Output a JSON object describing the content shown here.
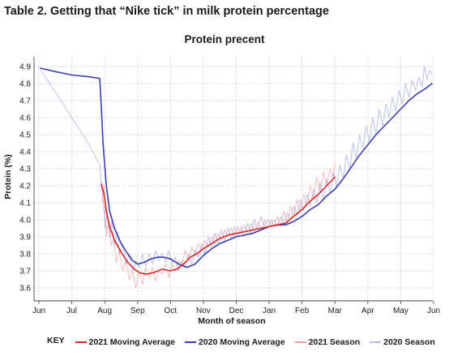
{
  "page": {
    "title": "Table 2. Getting that “Nike tick” in milk protein percentage"
  },
  "chart_data": {
    "type": "line",
    "title": "Protein precent",
    "xlabel": "Month of season",
    "ylabel": "Protein (%)",
    "x_ticks": [
      "Jun",
      "Jul",
      "Aug",
      "Sep",
      "Oct",
      "Nov",
      "Dec",
      "Jan",
      "Feb",
      "Mar",
      "Apr",
      "May",
      "Jun"
    ],
    "y_ticks": [
      "3.6",
      "3.7",
      "3.8",
      "3.9",
      "4.0",
      "4.1",
      "4.2",
      "4.3",
      "4.4",
      "4.5",
      "4.6",
      "4.7",
      "4.8",
      "4.9"
    ],
    "ylim": [
      3.55,
      4.95
    ],
    "grid": "dashed",
    "x_unit": "months since Jun 1 of season start",
    "legend": {
      "key_label": "KEY",
      "position": "bottom"
    },
    "series": [
      {
        "name": "2021 Moving Average",
        "color": "#d62a2a",
        "width": 1.6,
        "opacity": 1,
        "points": [
          [
            1.9,
            4.21
          ],
          [
            1.98,
            4.15
          ],
          [
            2.05,
            4.05
          ],
          [
            2.15,
            3.96
          ],
          [
            2.3,
            3.88
          ],
          [
            2.5,
            3.81
          ],
          [
            2.7,
            3.75
          ],
          [
            2.9,
            3.71
          ],
          [
            3.05,
            3.69
          ],
          [
            3.25,
            3.68
          ],
          [
            3.5,
            3.69
          ],
          [
            3.75,
            3.71
          ],
          [
            4.0,
            3.7
          ],
          [
            4.2,
            3.71
          ],
          [
            4.4,
            3.74
          ],
          [
            4.6,
            3.78
          ],
          [
            4.8,
            3.8
          ],
          [
            5.0,
            3.83
          ],
          [
            5.25,
            3.86
          ],
          [
            5.5,
            3.89
          ],
          [
            5.75,
            3.91
          ],
          [
            6.0,
            3.92
          ],
          [
            6.25,
            3.93
          ],
          [
            6.5,
            3.94
          ],
          [
            6.75,
            3.95
          ],
          [
            7.0,
            3.96
          ],
          [
            7.25,
            3.97
          ],
          [
            7.5,
            3.98
          ],
          [
            7.75,
            4.02
          ],
          [
            8.0,
            4.06
          ],
          [
            8.25,
            4.11
          ],
          [
            8.5,
            4.15
          ],
          [
            8.75,
            4.2
          ],
          [
            9.0,
            4.25
          ]
        ]
      },
      {
        "name": "2020 Moving Average",
        "color": "#3a3fb0",
        "width": 1.6,
        "opacity": 1,
        "points": [
          [
            0.05,
            4.89
          ],
          [
            0.5,
            4.87
          ],
          [
            1.0,
            4.85
          ],
          [
            1.5,
            4.84
          ],
          [
            1.85,
            4.83
          ],
          [
            1.9,
            4.65
          ],
          [
            1.95,
            4.45
          ],
          [
            2.05,
            4.2
          ],
          [
            2.15,
            4.05
          ],
          [
            2.3,
            3.95
          ],
          [
            2.5,
            3.86
          ],
          [
            2.7,
            3.8
          ],
          [
            2.85,
            3.76
          ],
          [
            3.0,
            3.74
          ],
          [
            3.2,
            3.75
          ],
          [
            3.4,
            3.77
          ],
          [
            3.6,
            3.78
          ],
          [
            3.8,
            3.78
          ],
          [
            4.0,
            3.77
          ],
          [
            4.25,
            3.74
          ],
          [
            4.5,
            3.72
          ],
          [
            4.75,
            3.74
          ],
          [
            5.0,
            3.79
          ],
          [
            5.25,
            3.83
          ],
          [
            5.5,
            3.86
          ],
          [
            5.75,
            3.88
          ],
          [
            6.0,
            3.9
          ],
          [
            6.25,
            3.91
          ],
          [
            6.5,
            3.92
          ],
          [
            6.75,
            3.94
          ],
          [
            7.0,
            3.96
          ],
          [
            7.25,
            3.97
          ],
          [
            7.5,
            3.97
          ],
          [
            7.75,
            3.99
          ],
          [
            8.0,
            4.02
          ],
          [
            8.25,
            4.06
          ],
          [
            8.5,
            4.09
          ],
          [
            8.75,
            4.14
          ],
          [
            9.0,
            4.18
          ],
          [
            9.25,
            4.24
          ],
          [
            9.5,
            4.31
          ],
          [
            9.75,
            4.38
          ],
          [
            10.0,
            4.44
          ],
          [
            10.25,
            4.5
          ],
          [
            10.5,
            4.55
          ],
          [
            10.75,
            4.6
          ],
          [
            11.0,
            4.65
          ],
          [
            11.25,
            4.7
          ],
          [
            11.5,
            4.74
          ],
          [
            11.75,
            4.77
          ],
          [
            11.95,
            4.8
          ]
        ]
      },
      {
        "name": "2021 Season",
        "color": "#e86b6b",
        "width": 1,
        "opacity": 0.45,
        "points": [
          [
            1.92,
            4.1
          ],
          [
            1.98,
            4.2
          ],
          [
            2.05,
            3.9
          ],
          [
            2.12,
            4.0
          ],
          [
            2.2,
            3.85
          ],
          [
            2.28,
            3.9
          ],
          [
            2.35,
            3.75
          ],
          [
            2.45,
            3.82
          ],
          [
            2.55,
            3.7
          ],
          [
            2.65,
            3.76
          ],
          [
            2.75,
            3.65
          ],
          [
            2.85,
            3.7
          ],
          [
            2.95,
            3.6
          ],
          [
            3.05,
            3.7
          ],
          [
            3.15,
            3.62
          ],
          [
            3.25,
            3.72
          ],
          [
            3.35,
            3.66
          ],
          [
            3.45,
            3.72
          ],
          [
            3.55,
            3.64
          ],
          [
            3.65,
            3.7
          ],
          [
            3.75,
            3.68
          ],
          [
            3.85,
            3.74
          ],
          [
            3.95,
            3.66
          ],
          [
            4.05,
            3.74
          ],
          [
            4.15,
            3.7
          ],
          [
            4.25,
            3.76
          ],
          [
            4.35,
            3.74
          ],
          [
            4.45,
            3.82
          ],
          [
            4.55,
            3.76
          ],
          [
            4.65,
            3.84
          ],
          [
            4.75,
            3.8
          ],
          [
            4.85,
            3.86
          ],
          [
            4.95,
            3.82
          ],
          [
            5.05,
            3.88
          ],
          [
            5.15,
            3.84
          ],
          [
            5.25,
            3.9
          ],
          [
            5.35,
            3.86
          ],
          [
            5.45,
            3.92
          ],
          [
            5.55,
            3.88
          ],
          [
            5.65,
            3.94
          ],
          [
            5.75,
            3.9
          ],
          [
            5.85,
            3.95
          ],
          [
            5.95,
            3.9
          ],
          [
            6.05,
            3.96
          ],
          [
            6.15,
            3.92
          ],
          [
            6.25,
            3.97
          ],
          [
            6.35,
            3.91
          ],
          [
            6.45,
            3.98
          ],
          [
            6.55,
            3.93
          ],
          [
            6.65,
            3.99
          ],
          [
            6.75,
            3.94
          ],
          [
            6.85,
            4.0
          ],
          [
            6.95,
            3.95
          ],
          [
            7.05,
            4.0
          ],
          [
            7.15,
            3.96
          ],
          [
            7.25,
            4.02
          ],
          [
            7.35,
            3.96
          ],
          [
            7.45,
            4.05
          ],
          [
            7.55,
            3.98
          ],
          [
            7.65,
            4.08
          ],
          [
            7.75,
            4.02
          ],
          [
            7.85,
            4.12
          ],
          [
            7.95,
            4.05
          ],
          [
            8.05,
            4.15
          ],
          [
            8.15,
            4.08
          ],
          [
            8.25,
            4.2
          ],
          [
            8.35,
            4.12
          ],
          [
            8.45,
            4.25
          ],
          [
            8.55,
            4.16
          ],
          [
            8.65,
            4.28
          ],
          [
            8.75,
            4.2
          ],
          [
            8.85,
            4.3
          ],
          [
            8.95,
            4.25
          ],
          [
            9.0,
            4.33
          ]
        ]
      },
      {
        "name": "2020 Season",
        "color": "#8e8ee0",
        "width": 1,
        "opacity": 0.55,
        "points": [
          [
            0.05,
            4.88
          ],
          [
            0.5,
            4.75
          ],
          [
            1.0,
            4.6
          ],
          [
            1.5,
            4.45
          ],
          [
            1.85,
            4.32
          ],
          [
            1.9,
            4.2
          ],
          [
            1.95,
            4.12
          ],
          [
            2.02,
            3.95
          ],
          [
            2.08,
            4.05
          ],
          [
            2.15,
            3.9
          ],
          [
            2.22,
            4.0
          ],
          [
            2.3,
            3.85
          ],
          [
            2.38,
            3.93
          ],
          [
            2.45,
            3.8
          ],
          [
            2.55,
            3.86
          ],
          [
            2.65,
            3.74
          ],
          [
            2.75,
            3.8
          ],
          [
            2.85,
            3.7
          ],
          [
            2.95,
            3.76
          ],
          [
            3.05,
            3.72
          ],
          [
            3.15,
            3.8
          ],
          [
            3.25,
            3.73
          ],
          [
            3.35,
            3.8
          ],
          [
            3.45,
            3.74
          ],
          [
            3.55,
            3.82
          ],
          [
            3.65,
            3.76
          ],
          [
            3.75,
            3.8
          ],
          [
            3.85,
            3.75
          ],
          [
            3.95,
            3.82
          ],
          [
            4.05,
            3.74
          ],
          [
            4.15,
            3.78
          ],
          [
            4.25,
            3.7
          ],
          [
            4.35,
            3.76
          ],
          [
            4.45,
            3.72
          ],
          [
            4.55,
            3.8
          ],
          [
            4.65,
            3.74
          ],
          [
            4.75,
            3.82
          ],
          [
            4.85,
            3.78
          ],
          [
            4.95,
            3.86
          ],
          [
            5.05,
            3.8
          ],
          [
            5.15,
            3.9
          ],
          [
            5.25,
            3.84
          ],
          [
            5.35,
            3.92
          ],
          [
            5.45,
            3.86
          ],
          [
            5.55,
            3.94
          ],
          [
            5.65,
            3.88
          ],
          [
            5.75,
            3.95
          ],
          [
            5.85,
            3.89
          ],
          [
            5.95,
            3.96
          ],
          [
            6.05,
            3.9
          ],
          [
            6.15,
            3.96
          ],
          [
            6.25,
            3.9
          ],
          [
            6.35,
            3.98
          ],
          [
            6.45,
            3.92
          ],
          [
            6.55,
            4.0
          ],
          [
            6.65,
            3.94
          ],
          [
            6.75,
            4.02
          ],
          [
            6.85,
            3.96
          ],
          [
            6.95,
            4.0
          ],
          [
            7.05,
            3.97
          ],
          [
            7.15,
            4.0
          ],
          [
            7.25,
            3.96
          ],
          [
            7.35,
            4.02
          ],
          [
            7.45,
            3.98
          ],
          [
            7.55,
            4.04
          ],
          [
            7.65,
            4.0
          ],
          [
            7.75,
            4.08
          ],
          [
            7.85,
            4.02
          ],
          [
            7.95,
            4.12
          ],
          [
            8.05,
            4.05
          ],
          [
            8.15,
            4.15
          ],
          [
            8.25,
            4.08
          ],
          [
            8.35,
            4.18
          ],
          [
            8.45,
            4.1
          ],
          [
            8.55,
            4.22
          ],
          [
            8.65,
            4.12
          ],
          [
            8.75,
            4.24
          ],
          [
            8.85,
            4.16
          ],
          [
            8.95,
            4.28
          ],
          [
            9.05,
            4.2
          ],
          [
            9.15,
            4.32
          ],
          [
            9.25,
            4.24
          ],
          [
            9.35,
            4.38
          ],
          [
            9.45,
            4.3
          ],
          [
            9.55,
            4.45
          ],
          [
            9.65,
            4.36
          ],
          [
            9.75,
            4.5
          ],
          [
            9.85,
            4.42
          ],
          [
            9.95,
            4.55
          ],
          [
            10.05,
            4.46
          ],
          [
            10.15,
            4.6
          ],
          [
            10.25,
            4.5
          ],
          [
            10.35,
            4.65
          ],
          [
            10.45,
            4.55
          ],
          [
            10.55,
            4.68
          ],
          [
            10.65,
            4.6
          ],
          [
            10.75,
            4.72
          ],
          [
            10.85,
            4.64
          ],
          [
            10.95,
            4.76
          ],
          [
            11.05,
            4.68
          ],
          [
            11.15,
            4.8
          ],
          [
            11.25,
            4.72
          ],
          [
            11.35,
            4.82
          ],
          [
            11.45,
            4.76
          ],
          [
            11.55,
            4.84
          ],
          [
            11.65,
            4.78
          ],
          [
            11.72,
            4.9
          ],
          [
            11.8,
            4.82
          ],
          [
            11.88,
            4.88
          ],
          [
            11.95,
            4.85
          ]
        ]
      }
    ]
  }
}
